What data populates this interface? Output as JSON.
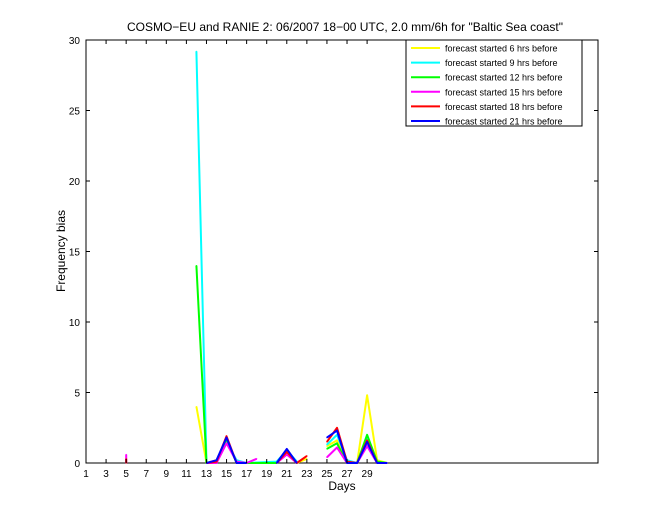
{
  "chart_data": {
    "type": "line",
    "title": "COSMO−EU and RANIE 2: 06/2007 18−00 UTC, 2.0 mm/6h for \"Baltic Sea coast\"",
    "xlabel": "Days",
    "ylabel": "Frequency bias",
    "xlim": [
      1,
      52
    ],
    "ylim": [
      0,
      30
    ],
    "xticks": [
      1,
      3,
      5,
      7,
      9,
      11,
      13,
      15,
      17,
      19,
      21,
      23,
      25,
      27,
      29
    ],
    "yticks": [
      0,
      5,
      10,
      15,
      20,
      25,
      30
    ],
    "grid": false,
    "legend_position": "top-right",
    "series": [
      {
        "name": "forecast started 6 hrs before",
        "color": "#ffff00",
        "points": [
          [
            12,
            4
          ],
          [
            13,
            0
          ],
          [
            14,
            0.2
          ],
          [
            15,
            1.6
          ],
          [
            16,
            0.1
          ],
          [
            17,
            0
          ],
          [
            20,
            0
          ],
          [
            21,
            0.8
          ],
          [
            22,
            0
          ],
          [
            23,
            0.3
          ],
          [
            null,
            null
          ],
          [
            25,
            1.2
          ],
          [
            26,
            1.6
          ],
          [
            27,
            0.1
          ],
          [
            28,
            0
          ],
          [
            29,
            4.8
          ],
          [
            30,
            0.2
          ],
          [
            31,
            0
          ]
        ]
      },
      {
        "name": "forecast started 9 hrs before",
        "color": "#00ffff",
        "points": [
          [
            12,
            29.2
          ],
          [
            13,
            0
          ],
          [
            14,
            0.1
          ],
          [
            15,
            1.5
          ],
          [
            16,
            0.2
          ],
          [
            17,
            0
          ],
          [
            20,
            0.1
          ],
          [
            21,
            0.9
          ],
          [
            22,
            0.1
          ],
          [
            null,
            null
          ],
          [
            25,
            1.3
          ],
          [
            26,
            2
          ],
          [
            27,
            0.2
          ],
          [
            28,
            0
          ],
          [
            29,
            1.8
          ],
          [
            30,
            0
          ],
          [
            31,
            0
          ]
        ]
      },
      {
        "name": "forecast started 12 hrs before",
        "color": "#00ff00",
        "points": [
          [
            12,
            14
          ],
          [
            13,
            0
          ],
          [
            14,
            0.1
          ],
          [
            15,
            1.7
          ],
          [
            16,
            0
          ],
          [
            17,
            0
          ],
          [
            20,
            0
          ],
          [
            21,
            0.7
          ],
          [
            22,
            0
          ],
          [
            null,
            null
          ],
          [
            25,
            1
          ],
          [
            26,
            1.4
          ],
          [
            27,
            0
          ],
          [
            28,
            0
          ],
          [
            29,
            2
          ],
          [
            30,
            0.1
          ],
          [
            31,
            0
          ]
        ]
      },
      {
        "name": "forecast started 15 hrs before",
        "color": "#ff00ff",
        "points": [
          [
            5,
            0.6
          ],
          [
            5,
            0
          ],
          [
            null,
            null
          ],
          [
            13,
            0
          ],
          [
            14,
            0
          ],
          [
            15,
            1.4
          ],
          [
            16,
            0.1
          ],
          [
            17,
            0
          ],
          [
            18,
            0.3
          ],
          [
            null,
            null
          ],
          [
            20,
            0
          ],
          [
            21,
            0.6
          ],
          [
            22,
            0
          ],
          [
            null,
            null
          ],
          [
            25,
            0.4
          ],
          [
            26,
            1.1
          ],
          [
            27,
            0
          ],
          [
            28,
            0
          ],
          [
            29,
            1.2
          ],
          [
            30,
            0
          ],
          [
            31,
            0
          ]
        ]
      },
      {
        "name": "forecast started 18 hrs before",
        "color": "#ff0000",
        "points": [
          [
            5,
            0.3
          ],
          [
            5,
            0
          ],
          [
            null,
            null
          ],
          [
            13,
            0
          ],
          [
            14,
            0.1
          ],
          [
            15,
            1.9
          ],
          [
            16,
            0
          ],
          [
            17,
            0
          ],
          [
            null,
            null
          ],
          [
            20,
            0
          ],
          [
            21,
            0.8
          ],
          [
            22,
            0
          ],
          [
            23,
            0.5
          ],
          [
            null,
            null
          ],
          [
            25,
            1.5
          ],
          [
            26,
            2.5
          ],
          [
            27,
            0.1
          ],
          [
            28,
            0
          ],
          [
            29,
            1.6
          ],
          [
            30,
            0
          ],
          [
            31,
            0
          ]
        ]
      },
      {
        "name": "forecast started 21 hrs before",
        "color": "#0000ff",
        "points": [
          [
            13,
            0
          ],
          [
            14,
            0.2
          ],
          [
            15,
            1.8
          ],
          [
            16,
            0
          ],
          [
            17,
            0
          ],
          [
            null,
            null
          ],
          [
            20,
            0
          ],
          [
            21,
            1
          ],
          [
            22,
            0
          ],
          [
            null,
            null
          ],
          [
            25,
            1.8
          ],
          [
            26,
            2.3
          ],
          [
            27,
            0
          ],
          [
            28,
            0
          ],
          [
            29,
            1.5
          ],
          [
            30,
            0
          ],
          [
            31,
            0
          ]
        ]
      }
    ]
  }
}
